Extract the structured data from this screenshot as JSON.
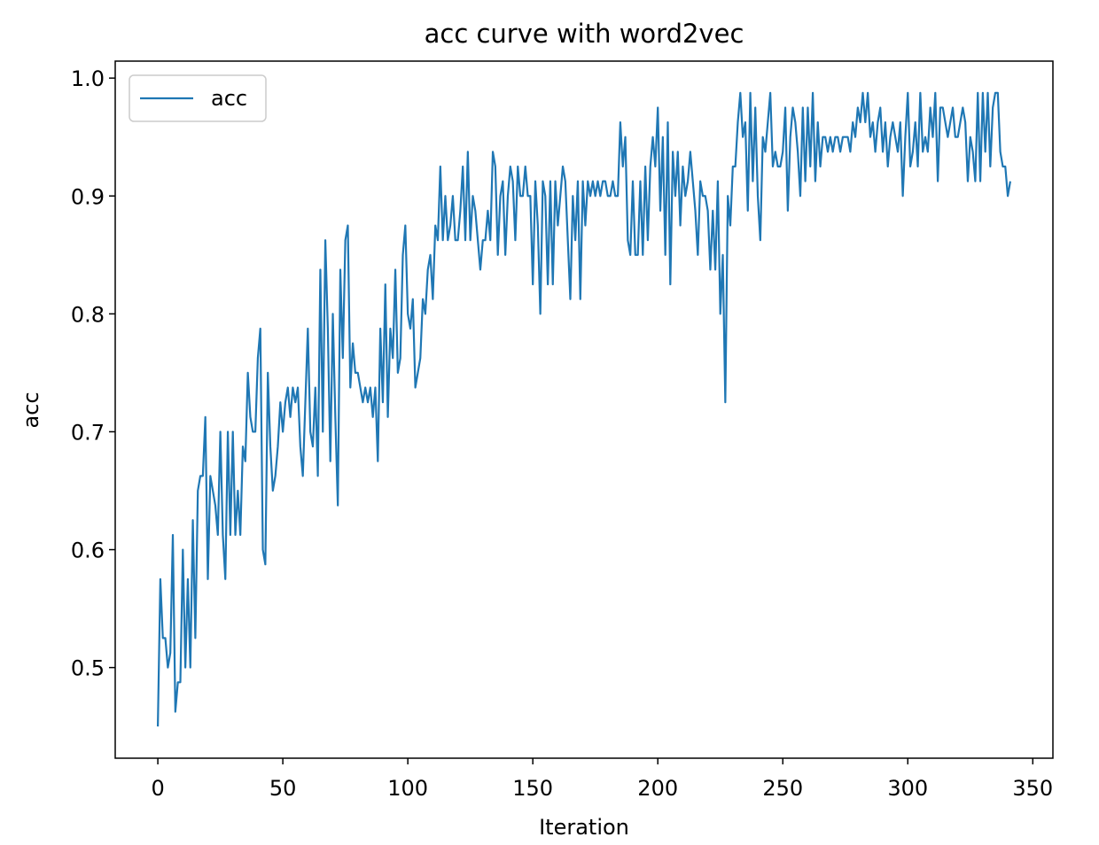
{
  "chart_data": {
    "type": "line",
    "title": "acc curve with word2vec",
    "xlabel": "Iteration",
    "ylabel": "acc",
    "x": [
      0,
      1,
      2,
      3,
      4,
      5,
      6,
      7,
      8,
      9,
      10,
      11,
      12,
      13,
      14,
      15,
      16,
      17,
      18,
      19,
      20,
      21,
      22,
      23,
      24,
      25,
      26,
      27,
      28,
      29,
      30,
      31,
      32,
      33,
      34,
      35,
      36,
      37,
      38,
      39,
      40,
      41,
      42,
      43,
      44,
      45,
      46,
      47,
      48,
      49,
      50,
      51,
      52,
      53,
      54,
      55,
      56,
      57,
      58,
      59,
      60,
      61,
      62,
      63,
      64,
      65,
      66,
      67,
      68,
      69,
      70,
      71,
      72,
      73,
      74,
      75,
      76,
      77,
      78,
      79,
      80,
      81,
      82,
      83,
      84,
      85,
      86,
      87,
      88,
      89,
      90,
      91,
      92,
      93,
      94,
      95,
      96,
      97,
      98,
      99,
      100,
      101,
      102,
      103,
      104,
      105,
      106,
      107,
      108,
      109,
      110,
      111,
      112,
      113,
      114,
      115,
      116,
      117,
      118,
      119,
      120,
      121,
      122,
      123,
      124,
      125,
      126,
      127,
      128,
      129,
      130,
      131,
      132,
      133,
      134,
      135,
      136,
      137,
      138,
      139,
      140,
      141,
      142,
      143,
      144,
      145,
      146,
      147,
      148,
      149,
      150,
      151,
      152,
      153,
      154,
      155,
      156,
      157,
      158,
      159,
      160,
      161,
      162,
      163,
      164,
      165,
      166,
      167,
      168,
      169,
      170,
      171,
      172,
      173,
      174,
      175,
      176,
      177,
      178,
      179,
      180,
      181,
      182,
      183,
      184,
      185,
      186,
      187,
      188,
      189,
      190,
      191,
      192,
      193,
      194,
      195,
      196,
      197,
      198,
      199,
      200,
      201,
      202,
      203,
      204,
      205,
      206,
      207,
      208,
      209,
      210,
      211,
      212,
      213,
      214,
      215,
      216,
      217,
      218,
      219,
      220,
      221,
      222,
      223,
      224,
      225,
      226,
      227,
      228,
      229,
      230,
      231,
      232,
      233,
      234,
      235,
      236,
      237,
      238,
      239,
      240,
      241,
      242,
      243,
      244,
      245,
      246,
      247,
      248,
      249,
      250,
      251,
      252,
      253,
      254,
      255,
      256,
      257,
      258,
      259,
      260,
      261,
      262,
      263,
      264,
      265,
      266,
      267,
      268,
      269,
      270,
      271,
      272,
      273,
      274,
      275,
      276,
      277,
      278,
      279,
      280,
      281,
      282,
      283,
      284,
      285,
      286,
      287,
      288,
      289,
      290,
      291,
      292,
      293,
      294,
      295,
      296,
      297,
      298,
      299,
      300,
      301,
      302,
      303,
      304,
      305,
      306,
      307,
      308,
      309,
      310,
      311,
      312,
      313,
      314,
      315,
      316,
      317,
      318,
      319,
      320,
      321,
      322,
      323,
      324,
      325,
      326,
      327,
      328,
      329,
      330,
      331,
      332,
      333,
      334,
      335,
      336,
      337,
      338,
      339,
      340,
      341
    ],
    "series": [
      {
        "name": "acc",
        "color": "#1f77b4",
        "values": [
          0.45,
          0.575,
          0.525,
          0.525,
          0.5,
          0.5125,
          0.6125,
          0.4625,
          0.4875,
          0.4875,
          0.6,
          0.5,
          0.575,
          0.5,
          0.625,
          0.525,
          0.65,
          0.6625,
          0.6625,
          0.7125,
          0.575,
          0.6625,
          0.65,
          0.6375,
          0.6125,
          0.7,
          0.6125,
          0.575,
          0.7,
          0.6125,
          0.7,
          0.6125,
          0.65,
          0.6125,
          0.6875,
          0.675,
          0.75,
          0.7125,
          0.7,
          0.7,
          0.7625,
          0.7875,
          0.6,
          0.5875,
          0.75,
          0.6875,
          0.65,
          0.6625,
          0.6875,
          0.725,
          0.7,
          0.725,
          0.7375,
          0.7125,
          0.7375,
          0.725,
          0.7375,
          0.6875,
          0.6625,
          0.725,
          0.7875,
          0.7,
          0.6875,
          0.7375,
          0.6625,
          0.8375,
          0.7,
          0.8625,
          0.7875,
          0.675,
          0.8,
          0.7125,
          0.6375,
          0.8375,
          0.7625,
          0.8625,
          0.875,
          0.7375,
          0.775,
          0.75,
          0.75,
          0.7375,
          0.725,
          0.7375,
          0.725,
          0.7375,
          0.7125,
          0.7375,
          0.675,
          0.7875,
          0.725,
          0.825,
          0.7125,
          0.7875,
          0.7625,
          0.8375,
          0.75,
          0.7625,
          0.85,
          0.875,
          0.8,
          0.7875,
          0.8125,
          0.7375,
          0.75,
          0.7625,
          0.8125,
          0.8,
          0.8375,
          0.85,
          0.8125,
          0.875,
          0.8625,
          0.925,
          0.8625,
          0.9,
          0.8625,
          0.875,
          0.9,
          0.8625,
          0.8625,
          0.8875,
          0.925,
          0.8625,
          0.9375,
          0.8625,
          0.9,
          0.8875,
          0.8625,
          0.8375,
          0.8625,
          0.8625,
          0.8875,
          0.8625,
          0.9375,
          0.925,
          0.85,
          0.9,
          0.9125,
          0.85,
          0.9,
          0.925,
          0.9125,
          0.8625,
          0.925,
          0.9,
          0.9,
          0.925,
          0.9,
          0.9,
          0.825,
          0.9125,
          0.875,
          0.8,
          0.9125,
          0.9,
          0.825,
          0.9125,
          0.825,
          0.9125,
          0.875,
          0.9,
          0.925,
          0.9125,
          0.8625,
          0.8125,
          0.9,
          0.8625,
          0.9125,
          0.8125,
          0.9125,
          0.875,
          0.9125,
          0.9,
          0.9125,
          0.9,
          0.9125,
          0.9,
          0.9125,
          0.9125,
          0.9,
          0.9,
          0.9125,
          0.9,
          0.9,
          0.9625,
          0.925,
          0.95,
          0.8625,
          0.85,
          0.9125,
          0.85,
          0.85,
          0.9125,
          0.85,
          0.925,
          0.8625,
          0.925,
          0.95,
          0.925,
          0.975,
          0.8875,
          0.95,
          0.85,
          0.9625,
          0.825,
          0.9375,
          0.9,
          0.9375,
          0.875,
          0.925,
          0.9,
          0.9125,
          0.9375,
          0.9125,
          0.8875,
          0.85,
          0.9125,
          0.9,
          0.9,
          0.8875,
          0.8375,
          0.8875,
          0.8375,
          0.9125,
          0.8,
          0.85,
          0.725,
          0.9,
          0.875,
          0.925,
          0.925,
          0.9625,
          0.9875,
          0.95,
          0.9625,
          0.8875,
          0.9875,
          0.9125,
          0.975,
          0.9,
          0.8625,
          0.95,
          0.9375,
          0.9625,
          0.9875,
          0.925,
          0.9375,
          0.925,
          0.925,
          0.9375,
          0.975,
          0.8875,
          0.95,
          0.975,
          0.9625,
          0.9375,
          0.9,
          0.975,
          0.9125,
          0.975,
          0.925,
          0.9875,
          0.9125,
          0.9625,
          0.925,
          0.95,
          0.95,
          0.9375,
          0.95,
          0.9375,
          0.95,
          0.95,
          0.9375,
          0.95,
          0.95,
          0.95,
          0.9375,
          0.9625,
          0.95,
          0.975,
          0.9625,
          0.9875,
          0.9625,
          0.9875,
          0.95,
          0.9625,
          0.9375,
          0.9625,
          0.975,
          0.9375,
          0.9625,
          0.925,
          0.95,
          0.9625,
          0.95,
          0.9375,
          0.9625,
          0.9,
          0.95,
          0.9875,
          0.925,
          0.9375,
          0.9625,
          0.925,
          0.9875,
          0.9375,
          0.95,
          0.9375,
          0.975,
          0.95,
          0.9875,
          0.9125,
          0.975,
          0.975,
          0.9625,
          0.95,
          0.9625,
          0.975,
          0.95,
          0.95,
          0.9625,
          0.975,
          0.9625,
          0.9125,
          0.95,
          0.9375,
          0.9125,
          0.9875,
          0.9125,
          0.9875,
          0.9375,
          0.9875,
          0.925,
          0.975,
          0.9875,
          0.9875,
          0.9375,
          0.925,
          0.925,
          0.9,
          0.9125
        ]
      }
    ],
    "xlim": [
      -17.05,
      358.05
    ],
    "ylim": [
      0.4231,
      1.0144
    ],
    "xticks": [
      0,
      50,
      100,
      150,
      200,
      250,
      300,
      350
    ],
    "yticks": [
      0.5,
      0.6,
      0.7,
      0.8,
      0.9,
      {
        "value": 1,
        "label": "1.0"
      }
    ],
    "legend": "upper left"
  }
}
